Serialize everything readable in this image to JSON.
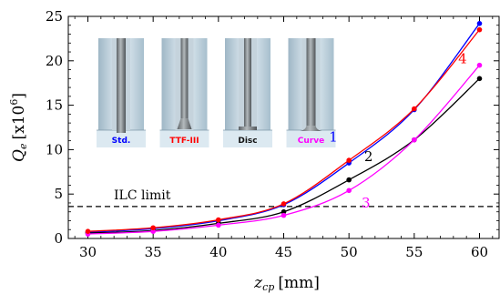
{
  "chart_data": {
    "type": "line",
    "xlabel_main": "z",
    "xlabel_sub": "cp",
    "xlabel_unit": "[mm]",
    "ylabel_main": "Q",
    "ylabel_sub": "e",
    "ylabel_unit_pre": "[x10",
    "ylabel_unit_exp": "6",
    "ylabel_unit_post": "]",
    "xlim": [
      28.5,
      61.5
    ],
    "ylim": [
      0,
      25
    ],
    "x_ticks": [
      30,
      35,
      40,
      45,
      50,
      55,
      60
    ],
    "y_ticks": [
      0,
      5,
      10,
      15,
      20,
      25
    ],
    "reference_line": {
      "y": 3.6,
      "label": "ILC  limit"
    },
    "series": [
      {
        "name": "1",
        "color": "#0000ff",
        "x": [
          30,
          35,
          40,
          45,
          50,
          55,
          60
        ],
        "y": [
          0.7,
          1.1,
          2.0,
          3.8,
          8.5,
          14.5,
          24.2
        ],
        "label_at": [
          48.8,
          10.9
        ]
      },
      {
        "name": "2",
        "color": "#000000",
        "x": [
          30,
          35,
          40,
          45,
          50,
          55,
          60
        ],
        "y": [
          0.6,
          0.9,
          1.7,
          3.0,
          6.6,
          11.1,
          18.0
        ],
        "label_at": [
          51.5,
          8.7
        ]
      },
      {
        "name": "3",
        "color": "#ff00ff",
        "x": [
          30,
          35,
          40,
          45,
          50,
          55,
          60
        ],
        "y": [
          0.5,
          0.8,
          1.5,
          2.6,
          5.4,
          11.1,
          19.5
        ],
        "label_at": [
          51.3,
          3.5
        ]
      },
      {
        "name": "4",
        "color": "#ff0000",
        "x": [
          30,
          35,
          40,
          45,
          50,
          55,
          60
        ],
        "y": [
          0.8,
          1.2,
          2.1,
          3.9,
          8.8,
          14.6,
          23.5
        ],
        "label_at": [
          58.7,
          19.7
        ]
      }
    ],
    "inset": {
      "panels": [
        {
          "label": "Std.",
          "color": "#0000ff",
          "tip": "straight"
        },
        {
          "label": "TTF-III",
          "color": "#ff0000",
          "tip": "taper"
        },
        {
          "label": "Disc",
          "color": "#111111",
          "tip": "disc"
        },
        {
          "label": "Curve",
          "color": "#ff00ff",
          "tip": "curve"
        }
      ]
    }
  }
}
